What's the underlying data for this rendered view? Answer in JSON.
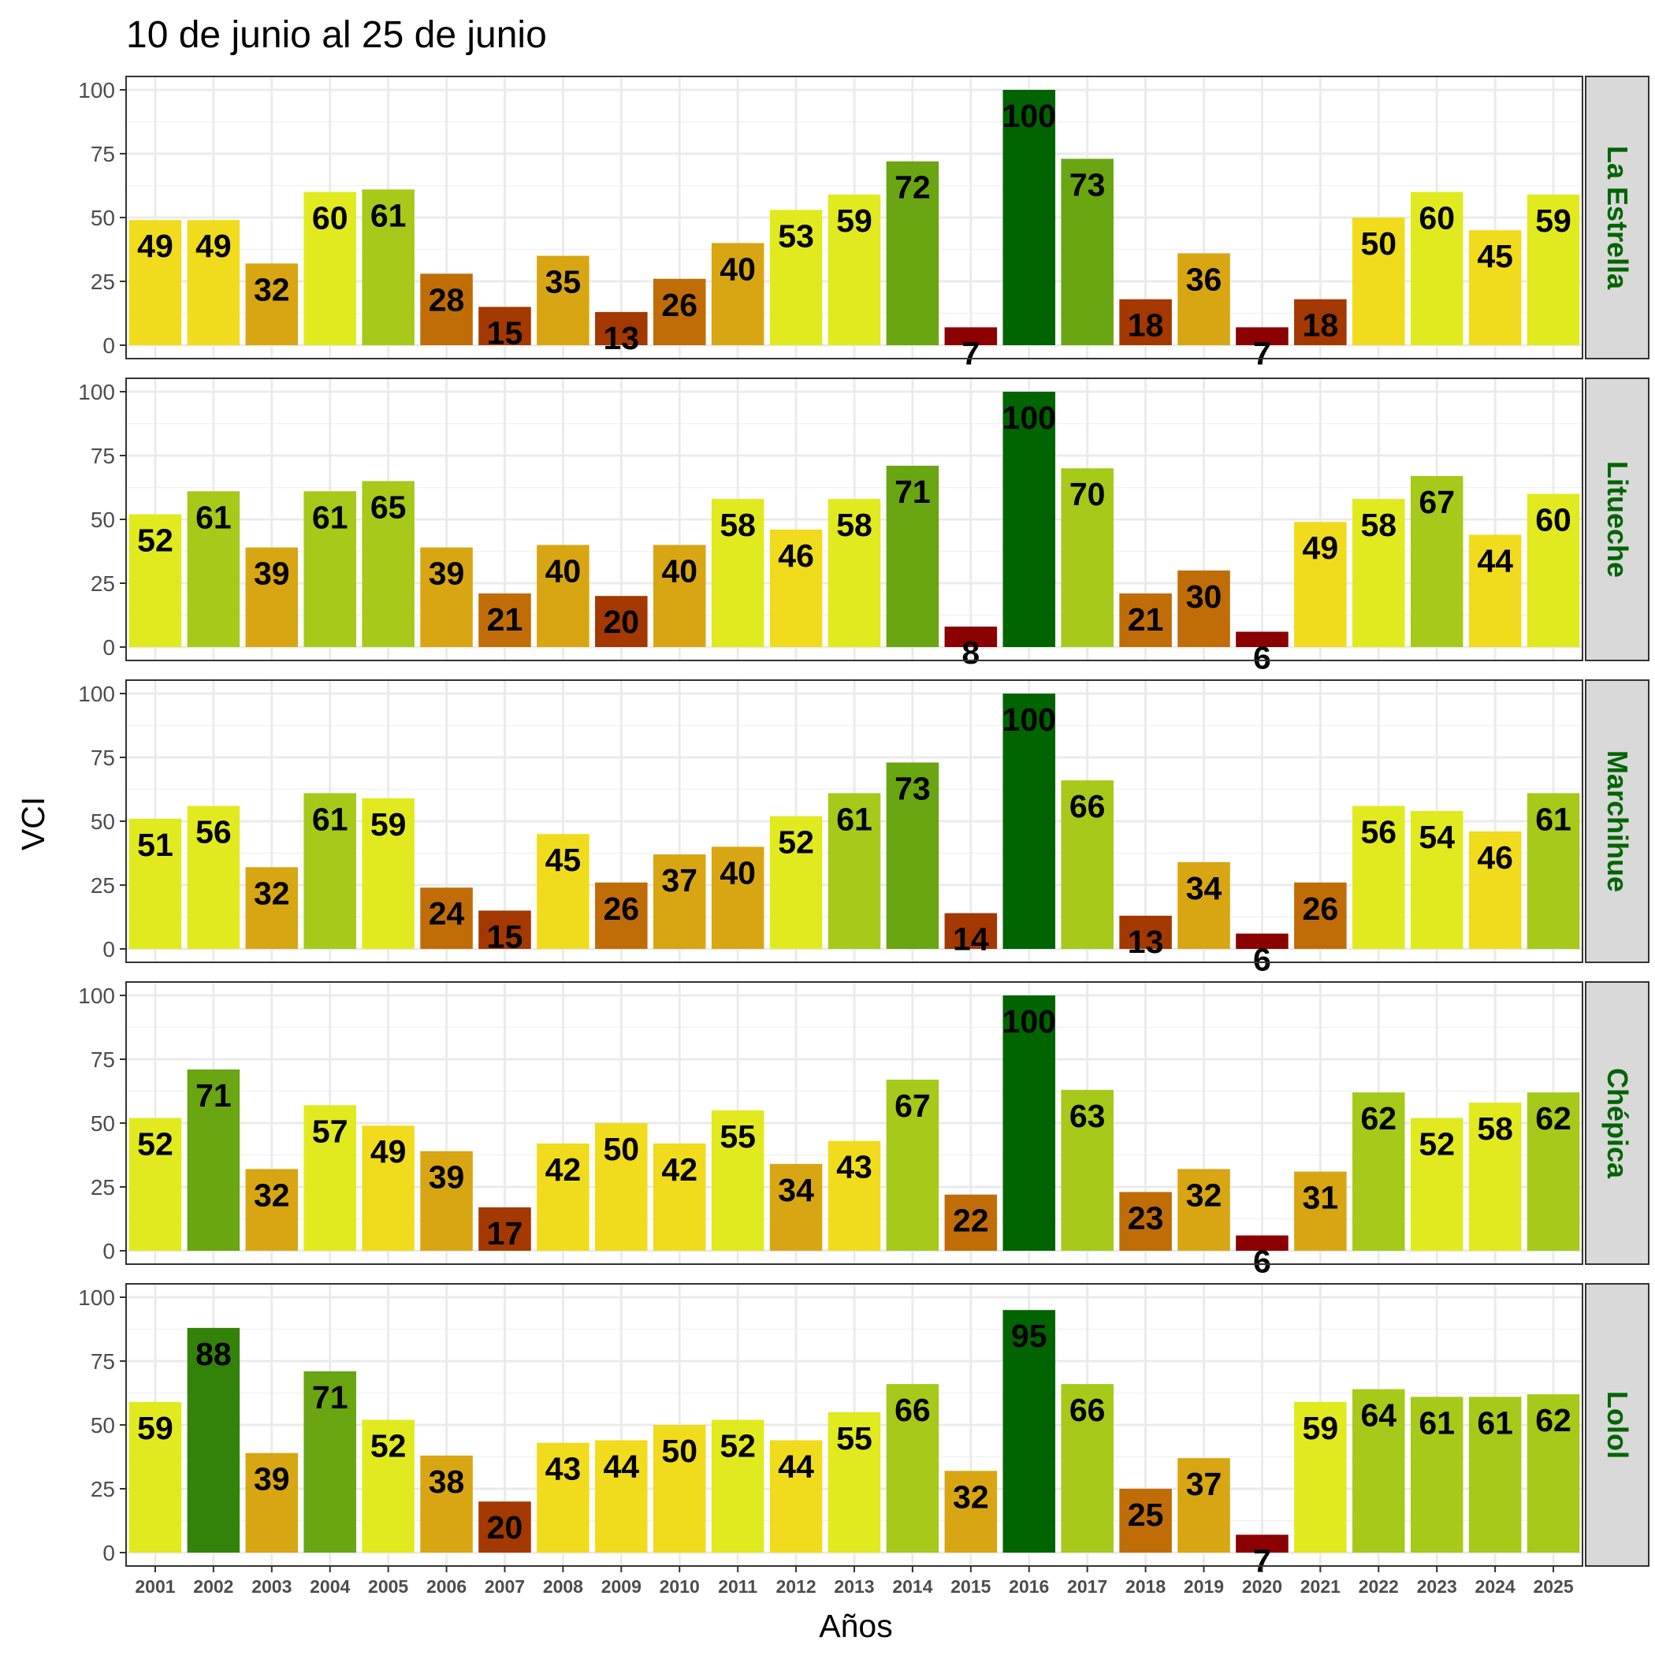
{
  "chart_data": {
    "type": "bar",
    "title": "10 de junio al 25 de junio",
    "xlabel": "Años",
    "ylabel": "VCI",
    "ylim": [
      0,
      100
    ],
    "yticks": [
      "0",
      "25",
      "50",
      "75",
      "100"
    ],
    "grid": true,
    "strip_text_color": "#006400",
    "categories": [
      "2001",
      "2002",
      "2003",
      "2004",
      "2005",
      "2006",
      "2007",
      "2008",
      "2009",
      "2010",
      "2011",
      "2012",
      "2013",
      "2014",
      "2015",
      "2016",
      "2017",
      "2018",
      "2019",
      "2020",
      "2021",
      "2022",
      "2023",
      "2024",
      "2025"
    ],
    "series": [
      {
        "name": "La Estrella",
        "values": [
          49,
          49,
          32,
          60,
          61,
          28,
          15,
          35,
          13,
          26,
          40,
          53,
          59,
          72,
          7,
          100,
          73,
          18,
          36,
          7,
          18,
          50,
          60,
          45,
          59
        ]
      },
      {
        "name": "Litueche",
        "values": [
          52,
          61,
          39,
          61,
          65,
          39,
          21,
          40,
          20,
          40,
          58,
          46,
          58,
          71,
          8,
          100,
          70,
          21,
          30,
          6,
          49,
          58,
          67,
          44,
          60
        ]
      },
      {
        "name": "Marchihue",
        "values": [
          51,
          56,
          32,
          61,
          59,
          24,
          15,
          45,
          26,
          37,
          40,
          52,
          61,
          73,
          14,
          100,
          66,
          13,
          34,
          6,
          26,
          56,
          54,
          46,
          61
        ]
      },
      {
        "name": "Chépica",
        "values": [
          52,
          71,
          32,
          57,
          49,
          39,
          17,
          42,
          50,
          42,
          55,
          34,
          43,
          67,
          22,
          100,
          63,
          23,
          32,
          6,
          31,
          62,
          52,
          58,
          62
        ]
      },
      {
        "name": "Lolol",
        "values": [
          59,
          88,
          39,
          71,
          52,
          38,
          20,
          43,
          44,
          50,
          52,
          44,
          55,
          66,
          32,
          95,
          66,
          25,
          37,
          7,
          59,
          64,
          61,
          61,
          62
        ]
      }
    ],
    "color_scale": [
      {
        "max": 10,
        "color": "#8b0000"
      },
      {
        "max": 20,
        "color": "#a33800"
      },
      {
        "max": 30,
        "color": "#c06d08"
      },
      {
        "max": 40,
        "color": "#d8a612"
      },
      {
        "max": 50,
        "color": "#f0dc1c"
      },
      {
        "max": 60,
        "color": "#e0ea1f"
      },
      {
        "max": 70,
        "color": "#a6c91a"
      },
      {
        "max": 80,
        "color": "#6aa512"
      },
      {
        "max": 90,
        "color": "#33820a"
      },
      {
        "max": 100,
        "color": "#006400"
      }
    ]
  }
}
